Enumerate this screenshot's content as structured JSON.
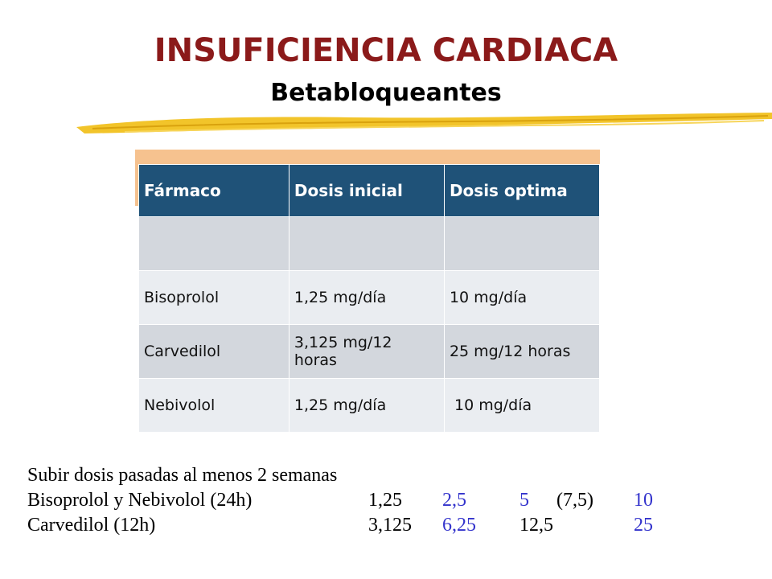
{
  "slide": {
    "title": "INSUFICIENCIA CARDIACA",
    "subtitle": "Betabloqueantes"
  },
  "table": {
    "headers": [
      "Fármaco",
      "Dosis inicial",
      "Dosis optima"
    ],
    "rows": [
      [
        "",
        "",
        ""
      ],
      [
        "Bisoprolol",
        "1,25 mg/día",
        "10 mg/día"
      ],
      [
        "Carvedilol",
        "3,125 mg/12 horas",
        "25 mg/12 horas"
      ],
      [
        "Nebivolol",
        "1,25 mg/día",
        " 10 mg/día"
      ]
    ]
  },
  "notes": {
    "intro": "Subir dosis pasadas al menos 2 semanas",
    "schedule": [
      {
        "label": "Bisoprolol y Nebivolol (24h)",
        "steps": [
          "1,25",
          "2,5",
          "5",
          "(7,5)",
          "10"
        ]
      },
      {
        "label": "Carvedilol (12h)",
        "steps": [
          "3,125",
          "6,25",
          "12,5",
          "",
          "25"
        ]
      }
    ]
  },
  "colors": {
    "title": "#8b1a1a",
    "header_bg": "#1f5278",
    "accent_band": "#f6c28f",
    "highlight_text": "#3333cc",
    "brush_stroke": "#f2c42a"
  }
}
